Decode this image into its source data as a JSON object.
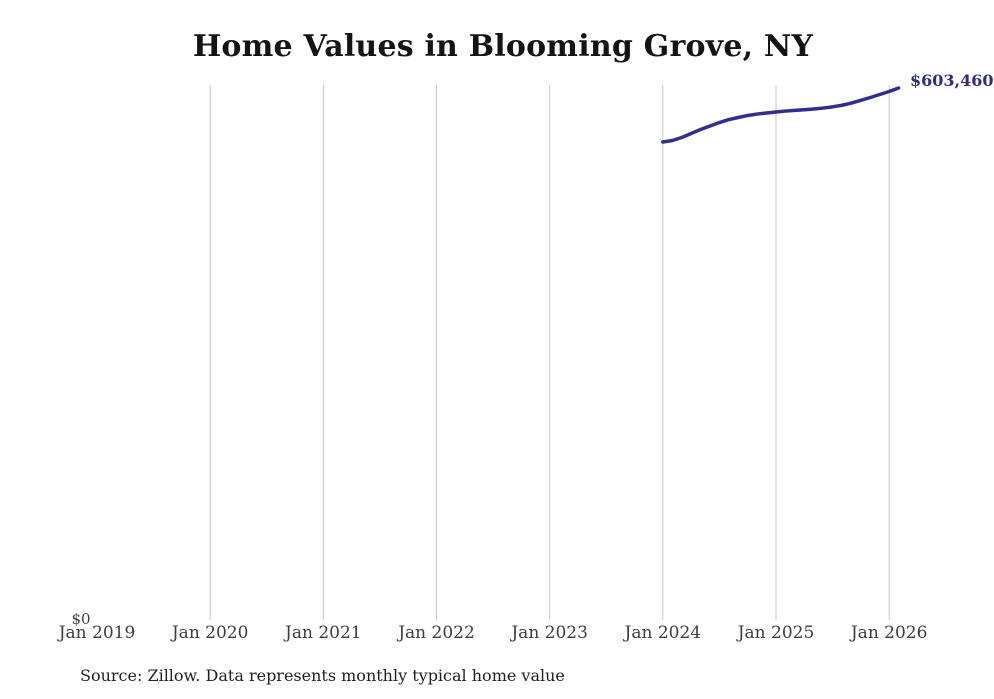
{
  "title": "Home Values in Blooming Grove, NY",
  "end_label": "$603,460",
  "y_axis": {
    "zero_label": "$0"
  },
  "source_note": "Source: Zillow. Data represents monthly typical home value",
  "colors": {
    "line": "#302e93",
    "end_label": "#2d2d86",
    "gridline": "#c9c9c9",
    "tick_label": "#3d3d3d",
    "title": "#141414",
    "source": "#1f1f1f",
    "background": "#ffffff"
  },
  "chart_data": {
    "type": "line",
    "title": "Home Values in Blooming Grove, NY",
    "xlabel": "",
    "ylabel": "",
    "x_tick_labels": [
      "Jan 2019",
      "Jan 2020",
      "Jan 2021",
      "Jan 2022",
      "Jan 2023",
      "Jan 2024",
      "Jan 2025",
      "Jan 2026"
    ],
    "x_gridlines": true,
    "first_x_tick_has_gridline": false,
    "y_gridlines": false,
    "legend": "none",
    "ylim": [
      0,
      640000
    ],
    "last_point_label": "$603,460",
    "series": [
      {
        "name": "Monthly typical home value",
        "x": [
          "Jan 2024",
          "Feb 2024",
          "Mar 2024",
          "Apr 2024",
          "May 2024",
          "Jun 2024",
          "Jul 2024",
          "Aug 2024",
          "Sep 2024",
          "Oct 2024",
          "Nov 2024",
          "Dec 2024",
          "Jan 2025",
          "Feb 2025",
          "Mar 2025",
          "Apr 2025",
          "May 2025",
          "Jun 2025",
          "Jul 2025",
          "Aug 2025",
          "Sep 2025",
          "Oct 2025",
          "Nov 2025",
          "Dec 2025",
          "Jan 2026",
          "Feb 2026"
        ],
        "values": [
          542200,
          543900,
          547300,
          551800,
          556400,
          560400,
          564300,
          567700,
          570000,
          572300,
          573900,
          575100,
          576200,
          577300,
          578100,
          578800,
          579600,
          580700,
          582100,
          583900,
          586400,
          589500,
          592700,
          596100,
          599500,
          603460
        ]
      }
    ]
  }
}
